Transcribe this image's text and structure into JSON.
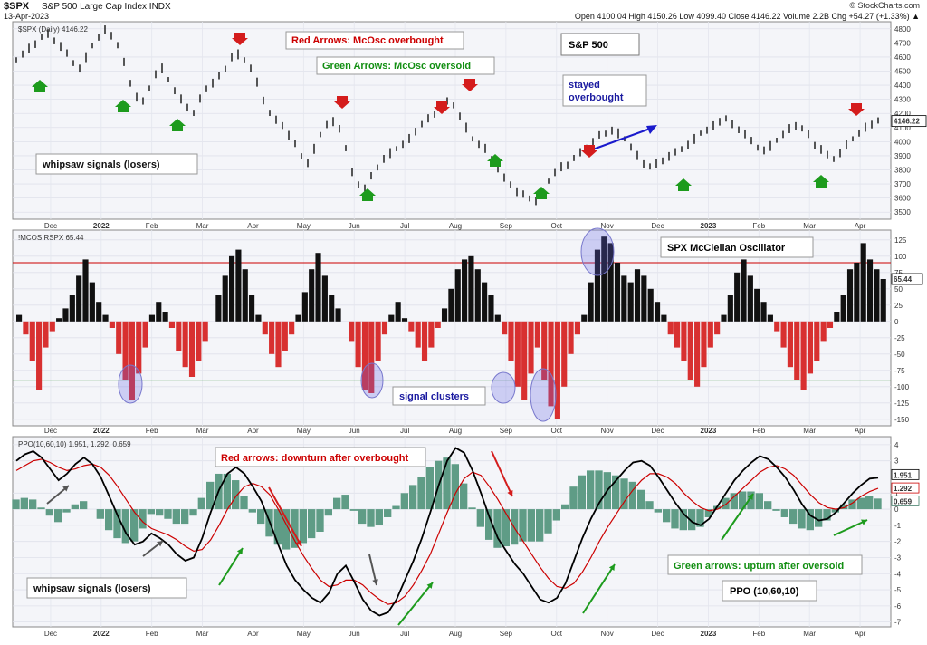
{
  "header": {
    "symbol": "$SPX",
    "name": "S&P 500 Large Cap Index INDX",
    "date": "13-Apr-2023",
    "ohlc": "Open 4100.04  High 4150.26  Low 4099.40  Close 4146.22  Volume 2.2B  Chg +54.27 (+1.33%) ▲",
    "brand": "© StockCharts.com"
  },
  "chart_data": [
    {
      "type": "line",
      "title": "S&P 500",
      "series_label": "$SPX (Daily) 4146.22",
      "last_value_label": "4146.22",
      "ylim": [
        3450,
        4850
      ],
      "yticks": [
        3500,
        3600,
        3700,
        3800,
        3900,
        4000,
        4100,
        4200,
        4300,
        4400,
        4500,
        4600,
        4700,
        4800
      ],
      "x_month_labels": [
        "Dec",
        "2022",
        "Feb",
        "Mar",
        "Apr",
        "May",
        "Jun",
        "Jul",
        "Aug",
        "Sep",
        "Oct",
        "Nov",
        "Dec",
        "2023",
        "Feb",
        "Mar",
        "Apr"
      ],
      "values": [
        4580,
        4620,
        4660,
        4700,
        4740,
        4760,
        4720,
        4680,
        4620,
        4560,
        4520,
        4600,
        4680,
        4740,
        4790,
        4760,
        4680,
        4560,
        4420,
        4320,
        4280,
        4380,
        4480,
        4520,
        4440,
        4360,
        4300,
        4250,
        4200,
        4300,
        4380,
        4420,
        4460,
        4520,
        4600,
        4620,
        4580,
        4520,
        4420,
        4300,
        4200,
        4150,
        4120,
        4050,
        3980,
        3900,
        3850,
        3950,
        4050,
        4120,
        4140,
        4100,
        3950,
        3780,
        3700,
        3670,
        3750,
        3820,
        3880,
        3920,
        3950,
        3980,
        4020,
        4080,
        4120,
        4160,
        4200,
        4240,
        4280,
        4260,
        4180,
        4100,
        4020,
        3980,
        3950,
        3880,
        3800,
        3740,
        3700,
        3650,
        3620,
        3600,
        3580,
        3640,
        3720,
        3780,
        3820,
        3840,
        3880,
        3920,
        3960,
        4000,
        4040,
        4060,
        4080,
        4060,
        4020,
        3960,
        3900,
        3850,
        3820,
        3840,
        3870,
        3900,
        3920,
        3950,
        3980,
        4020,
        4060,
        4080,
        4110,
        4150,
        4160,
        4120,
        4090,
        4060,
        4000,
        3960,
        3940,
        3970,
        4010,
        4050,
        4090,
        4120,
        4090,
        4050,
        3980,
        3950,
        3900,
        3880,
        3920,
        3980,
        4020,
        4060,
        4100,
        4130,
        4146
      ],
      "annotations": [
        "Red Arrows: McOsc overbought",
        "Green Arrows: McOsc oversold",
        "stayed overbought",
        "whipsaw signals (losers)"
      ]
    },
    {
      "type": "bar",
      "title": "SPX McClellan Oscillator",
      "series_label": "!MCOSIRSPX 65.44",
      "last_value_label": "65.44",
      "ylim": [
        -160,
        140
      ],
      "yticks": [
        -150,
        -125,
        -100,
        -75,
        -50,
        -25,
        0,
        25,
        50,
        75,
        100,
        125
      ],
      "reference_lines": [
        {
          "value": 90,
          "color": "#cc0000"
        },
        {
          "value": -90,
          "color": "#007700"
        }
      ],
      "values": [
        10,
        -20,
        -60,
        -105,
        -40,
        -15,
        5,
        20,
        40,
        70,
        95,
        60,
        30,
        10,
        -10,
        -50,
        -90,
        -120,
        -80,
        -40,
        10,
        30,
        15,
        -10,
        -45,
        -70,
        -85,
        -60,
        -30,
        0,
        40,
        70,
        100,
        110,
        80,
        40,
        10,
        -20,
        -50,
        -70,
        -45,
        -20,
        10,
        45,
        80,
        105,
        70,
        40,
        20,
        0,
        -30,
        -70,
        -105,
        -110,
        -60,
        -20,
        10,
        30,
        5,
        -15,
        -40,
        -60,
        -40,
        -10,
        20,
        50,
        80,
        95,
        100,
        80,
        60,
        40,
        10,
        -20,
        -60,
        -100,
        -120,
        -80,
        -40,
        -90,
        -130,
        -150,
        -100,
        -50,
        -20,
        10,
        60,
        110,
        130,
        120,
        90,
        70,
        60,
        80,
        70,
        50,
        30,
        10,
        -20,
        -40,
        -60,
        -90,
        -100,
        -70,
        -40,
        -20,
        10,
        40,
        75,
        95,
        70,
        50,
        30,
        10,
        -15,
        -40,
        -70,
        -90,
        -105,
        -80,
        -60,
        -30,
        -10,
        15,
        40,
        80,
        90,
        120,
        95,
        80,
        65
      ]
    },
    {
      "type": "line",
      "title": "PPO (10,60,10)",
      "series_label": "PPO(10,60,10) 1.951, 1.292, 0.659",
      "last_value_labels": [
        "1.951",
        "1.292",
        "0.659"
      ],
      "ylim": [
        -7.3,
        4.5
      ],
      "yticks": [
        -7,
        -6,
        -5,
        -4,
        -3,
        -2,
        -1,
        0,
        1,
        2,
        3,
        4
      ],
      "series": [
        {
          "name": "PPO",
          "color": "#000000",
          "values": [
            3.0,
            3.4,
            3.6,
            3.2,
            2.5,
            1.8,
            2.2,
            2.8,
            3.2,
            2.8,
            2.0,
            0.8,
            -0.4,
            -1.5,
            -2.2,
            -2.0,
            -1.5,
            -1.8,
            -2.2,
            -2.8,
            -3.2,
            -3.0,
            -1.8,
            -0.2,
            1.2,
            2.2,
            2.6,
            2.2,
            1.4,
            0.5,
            -0.8,
            -2.2,
            -3.5,
            -4.4,
            -5.0,
            -5.5,
            -5.8,
            -5.2,
            -4.0,
            -3.5,
            -4.5,
            -5.6,
            -6.3,
            -6.6,
            -6.4,
            -5.6,
            -4.4,
            -3.2,
            -1.8,
            -0.2,
            1.5,
            3.0,
            3.8,
            3.5,
            2.4,
            1.0,
            -0.5,
            -1.8,
            -2.6,
            -3.4,
            -4.0,
            -4.8,
            -5.6,
            -5.8,
            -5.5,
            -4.6,
            -3.2,
            -1.8,
            -0.6,
            0.4,
            1.2,
            1.8,
            2.4,
            2.9,
            3.0,
            2.7,
            2.0,
            1.2,
            0.4,
            -0.3,
            -0.8,
            -1.0,
            -0.6,
            0.2,
            1.0,
            1.8,
            2.4,
            2.9,
            3.3,
            3.1,
            2.6,
            2.0,
            1.2,
            0.3,
            -0.4,
            -0.7,
            -0.6,
            -0.2,
            0.4,
            1.0,
            1.5,
            1.9,
            1.95
          ]
        },
        {
          "name": "Signal",
          "color": "#cc0000",
          "values": [
            2.4,
            2.7,
            3.0,
            3.1,
            2.9,
            2.6,
            2.4,
            2.5,
            2.7,
            2.8,
            2.6,
            2.1,
            1.4,
            0.6,
            -0.2,
            -0.8,
            -1.2,
            -1.4,
            -1.6,
            -1.9,
            -2.3,
            -2.6,
            -2.5,
            -1.9,
            -1.0,
            0.0,
            0.8,
            1.4,
            1.6,
            1.4,
            0.9,
            0.0,
            -1.0,
            -2.0,
            -2.9,
            -3.7,
            -4.4,
            -4.8,
            -4.7,
            -4.4,
            -4.4,
            -4.7,
            -5.2,
            -5.6,
            -5.9,
            -5.8,
            -5.4,
            -4.7,
            -3.8,
            -2.8,
            -1.5,
            -0.2,
            1.0,
            1.9,
            2.3,
            2.1,
            1.4,
            0.6,
            -0.3,
            -1.2,
            -2.0,
            -2.8,
            -3.6,
            -4.3,
            -4.8,
            -4.9,
            -4.6,
            -3.9,
            -3.0,
            -2.0,
            -1.1,
            -0.3,
            0.5,
            1.2,
            1.8,
            2.2,
            2.2,
            2.0,
            1.6,
            1.0,
            0.5,
            0.1,
            -0.1,
            0.0,
            0.3,
            0.8,
            1.3,
            1.8,
            2.3,
            2.6,
            2.7,
            2.5,
            2.1,
            1.5,
            0.9,
            0.4,
            0.1,
            0.0,
            0.1,
            0.4,
            0.8,
            1.1,
            1.29
          ]
        }
      ],
      "annotations": [
        "Red arrows: downturn after overbought",
        "Green arrows: upturn after oversold",
        "whipsaw signals (losers)"
      ]
    }
  ],
  "other_annotations": {
    "signal_clusters": "signal clusters"
  }
}
